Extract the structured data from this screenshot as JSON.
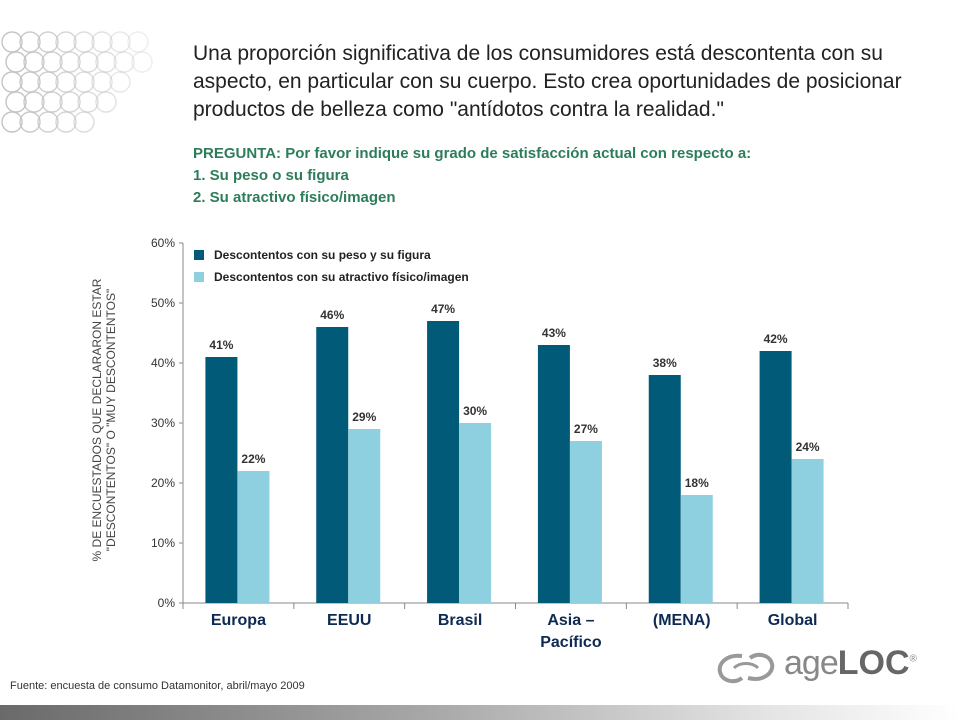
{
  "headline": "Una proporción significativa de los consumidores está descontenta con su aspecto, en particular con su cuerpo. Esto crea oportunidades de posicionar productos de belleza como \"antídotos contra la realidad.\"",
  "question": {
    "line1": "PREGUNTA: Por favor indique su grado de satisfacción actual con respecto a:",
    "line2": "1. Su peso o su figura",
    "line3": "2. Su atractivo físico/imagen"
  },
  "source": "Fuente: encuesta de consumo Datamonitor, abril/mayo 2009",
  "logo": {
    "text_light": "age",
    "text_bold": "LOC",
    "mark": "®"
  },
  "colors": {
    "series1": "#005a78",
    "series2": "#8ecfe0",
    "question": "#2e7d5a",
    "axis_labels": "#0d2a52"
  },
  "chart_data": {
    "type": "bar",
    "categories": [
      "Europa",
      "EEUU",
      "Brasil",
      "Asia –\nPacífico",
      "(MENA)",
      "Global"
    ],
    "series": [
      {
        "name": "Descontentos con su peso y su figura",
        "values": [
          41,
          46,
          47,
          43,
          38,
          42
        ]
      },
      {
        "name": "Descontentos con su atractivo físico/imagen",
        "values": [
          22,
          29,
          30,
          27,
          18,
          24
        ]
      }
    ],
    "ylabel": "% DE ENCUESTADOS QUE DECLARARON ESTAR \"DESCONTENTOS\" O \"MUY DESCONTENTOS\"",
    "ylim": [
      0,
      60
    ],
    "yticks": [
      0,
      10,
      20,
      30,
      40,
      50,
      60
    ],
    "value_suffix": "%",
    "grid": false,
    "legend_position": "top-left"
  }
}
